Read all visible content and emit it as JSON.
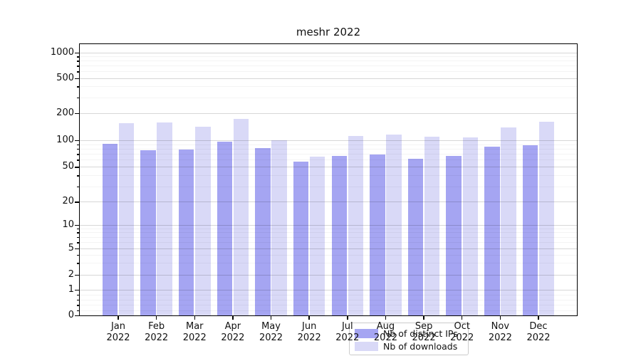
{
  "title": "meshr 2022",
  "chart_data": {
    "type": "bar",
    "title": "meshr 2022",
    "xlabel": "",
    "ylabel": "",
    "yscale": "symlog",
    "grid": true,
    "ylim": [
      0,
      1250
    ],
    "yticks": [
      0,
      1,
      2,
      5,
      10,
      20,
      50,
      100,
      200,
      500,
      1000
    ],
    "minor_yticks": [
      0.2,
      0.4,
      0.6,
      0.8,
      3,
      4,
      6,
      7,
      8,
      9,
      30,
      40,
      60,
      70,
      80,
      90,
      300,
      400,
      600,
      700,
      800,
      900
    ],
    "categories": [
      "Jan",
      "Feb",
      "Mar",
      "Apr",
      "May",
      "Jun",
      "Jul",
      "Aug",
      "Sep",
      "Oct",
      "Nov",
      "Dec"
    ],
    "category_year": "2022",
    "series": [
      {
        "name": "Nb of distinct IPs",
        "color": "#a5a5f2",
        "values": [
          92,
          77,
          79,
          96,
          81,
          57,
          66,
          69,
          62,
          66,
          84,
          88
        ]
      },
      {
        "name": "Nb of downloads",
        "color": "#d9d9f7",
        "values": [
          153,
          156,
          142,
          172,
          100,
          65,
          112,
          115,
          109,
          108,
          138,
          160
        ]
      }
    ],
    "legend_position": "lower center (inside plot)"
  }
}
